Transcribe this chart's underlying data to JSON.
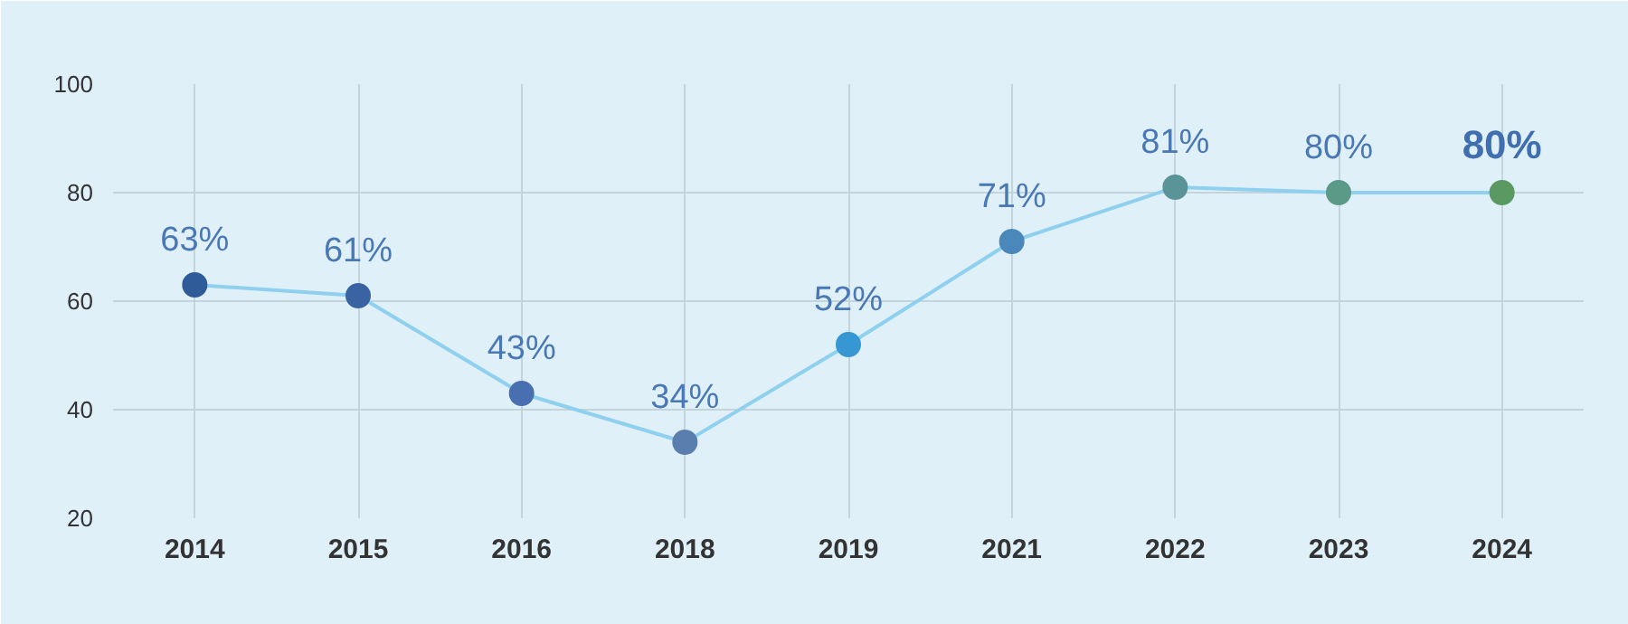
{
  "chart_data": {
    "type": "line",
    "categories": [
      "2014",
      "2015",
      "2016",
      "2018",
      "2019",
      "2021",
      "2022",
      "2023",
      "2024"
    ],
    "series": [
      {
        "color": "#8fd0ef",
        "colors": [
          "#2f5b99",
          "#3a63a2",
          "#4870b0",
          "#5a7fae",
          "#3697d3",
          "#4a88bb",
          "#5b9498",
          "#5b9a86",
          "#5a9a62"
        ],
        "values": [
          63,
          61,
          43,
          34,
          52,
          71,
          81,
          80,
          80
        ],
        "value_labels": [
          "63%",
          "61%",
          "43%",
          "34%",
          "52%",
          "71%",
          "81%",
          "80%",
          "80%"
        ]
      }
    ],
    "ylim": [
      20,
      100
    ],
    "yticks": [
      20,
      40,
      60,
      80,
      100
    ],
    "grid": true,
    "marker": "circle",
    "line_style": "solid"
  }
}
